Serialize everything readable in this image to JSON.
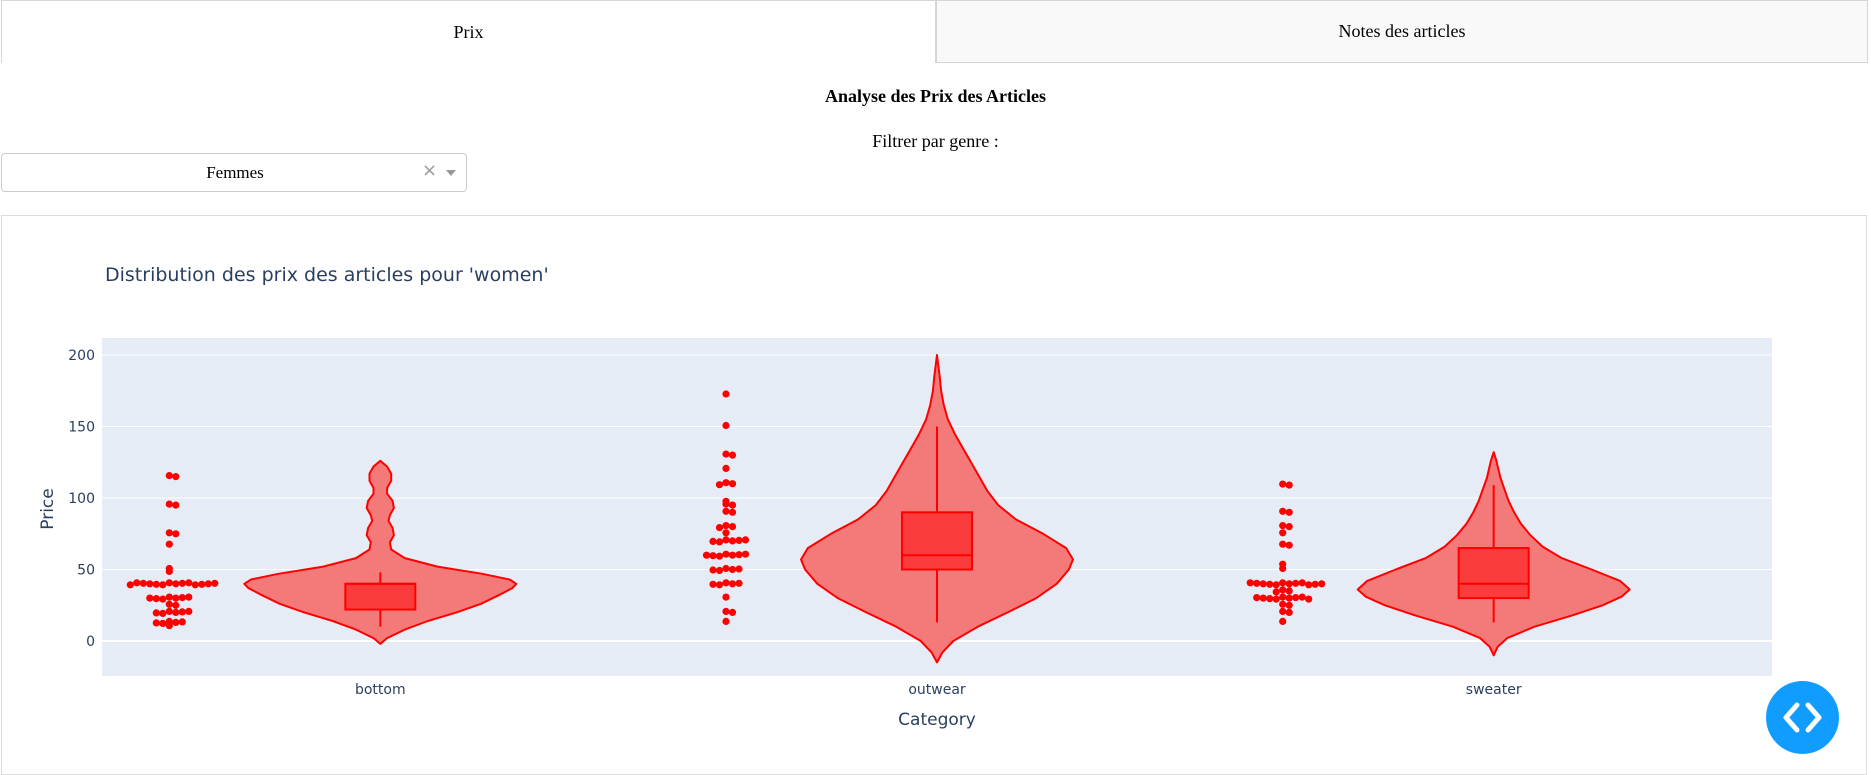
{
  "tabs": [
    {
      "label": "Prix",
      "active": true
    },
    {
      "label": "Notes des articles",
      "active": false
    }
  ],
  "page_title": "Analyse des Prix des Articles",
  "filter": {
    "label": "Filtrer par genre :",
    "value": "Femmes",
    "clear_symbol": "×"
  },
  "colors": {
    "accent": "#ff0000",
    "violin_fill": "#f47a7a",
    "plot_bg": "#e5ecf6",
    "text": "#2a3f5f",
    "fab": "#119dff"
  },
  "fab": {
    "icon": "code-icon"
  },
  "chart_data": {
    "type": "violin",
    "title": "Distribution des prix des articles pour 'women'",
    "xlabel": "Category",
    "ylabel": "Price",
    "ylim": [
      -28,
      210
    ],
    "yticks": [
      0,
      50,
      100,
      150,
      200
    ],
    "grid": true,
    "categories": [
      "bottom",
      "outwear",
      "sweater"
    ],
    "series": [
      {
        "category": "bottom",
        "points": [
          115,
          115,
          95,
          95,
          75,
          75,
          67,
          50,
          48,
          40,
          40,
          40,
          40,
          40,
          40,
          40,
          40,
          40,
          40,
          40,
          40,
          40,
          40,
          30,
          30,
          30,
          30,
          30,
          30,
          30,
          25,
          25,
          20,
          20,
          20,
          20,
          20,
          20,
          13,
          13,
          13,
          13,
          13,
          10
        ],
        "box": {
          "q1": 22,
          "median": 40,
          "q3": 40,
          "min": 10,
          "max": 48
        },
        "kde_range": [
          -2,
          126
        ],
        "kde_profile": [
          [
            -2,
            0
          ],
          [
            2,
            0.05
          ],
          [
            8,
            0.18
          ],
          [
            14,
            0.35
          ],
          [
            20,
            0.56
          ],
          [
            26,
            0.74
          ],
          [
            32,
            0.87
          ],
          [
            37,
            0.97
          ],
          [
            40,
            1.0
          ],
          [
            43,
            0.95
          ],
          [
            47,
            0.75
          ],
          [
            52,
            0.42
          ],
          [
            58,
            0.18
          ],
          [
            64,
            0.08
          ],
          [
            69,
            0.07
          ],
          [
            74,
            0.1
          ],
          [
            79,
            0.09
          ],
          [
            84,
            0.06
          ],
          [
            88,
            0.07
          ],
          [
            93,
            0.1
          ],
          [
            98,
            0.09
          ],
          [
            103,
            0.05
          ],
          [
            107,
            0.05
          ],
          [
            112,
            0.08
          ],
          [
            117,
            0.08
          ],
          [
            122,
            0.05
          ],
          [
            126,
            0
          ]
        ]
      },
      {
        "category": "outwear",
        "points": [
          172,
          150,
          130,
          130,
          120,
          110,
          110,
          110,
          97,
          95,
          95,
          90,
          90,
          80,
          80,
          80,
          75,
          70,
          70,
          70,
          70,
          70,
          70,
          60,
          60,
          60,
          60,
          60,
          60,
          60,
          50,
          50,
          50,
          50,
          50,
          40,
          40,
          40,
          40,
          40,
          30,
          20,
          20,
          13
        ],
        "box": {
          "q1": 50,
          "median": 60,
          "q3": 90,
          "min": 13,
          "max": 150
        },
        "kde_range": [
          -15,
          200
        ],
        "kde_profile": [
          [
            -15,
            0
          ],
          [
            -8,
            0.04
          ],
          [
            0,
            0.12
          ],
          [
            10,
            0.3
          ],
          [
            20,
            0.52
          ],
          [
            30,
            0.73
          ],
          [
            40,
            0.88
          ],
          [
            50,
            0.97
          ],
          [
            57,
            1.0
          ],
          [
            65,
            0.95
          ],
          [
            75,
            0.78
          ],
          [
            85,
            0.58
          ],
          [
            95,
            0.45
          ],
          [
            105,
            0.37
          ],
          [
            115,
            0.31
          ],
          [
            125,
            0.25
          ],
          [
            135,
            0.19
          ],
          [
            145,
            0.13
          ],
          [
            155,
            0.08
          ],
          [
            165,
            0.05
          ],
          [
            175,
            0.03
          ],
          [
            185,
            0.02
          ],
          [
            200,
            0
          ]
        ]
      },
      {
        "category": "sweater",
        "points": [
          109,
          109,
          90,
          90,
          80,
          80,
          75,
          67,
          67,
          53,
          50,
          40,
          40,
          40,
          40,
          40,
          40,
          40,
          40,
          40,
          40,
          40,
          40,
          35,
          35,
          35,
          30,
          30,
          30,
          30,
          30,
          30,
          30,
          30,
          30,
          25,
          25,
          20,
          20,
          13
        ],
        "box": {
          "q1": 30,
          "median": 40,
          "q3": 65,
          "min": 13,
          "max": 109
        },
        "kde_range": [
          -10,
          132
        ],
        "kde_profile": [
          [
            -10,
            0
          ],
          [
            -4,
            0.03
          ],
          [
            2,
            0.1
          ],
          [
            10,
            0.3
          ],
          [
            18,
            0.58
          ],
          [
            25,
            0.8
          ],
          [
            31,
            0.94
          ],
          [
            36,
            1.0
          ],
          [
            42,
            0.93
          ],
          [
            50,
            0.72
          ],
          [
            58,
            0.5
          ],
          [
            66,
            0.36
          ],
          [
            74,
            0.27
          ],
          [
            82,
            0.2
          ],
          [
            90,
            0.15
          ],
          [
            98,
            0.11
          ],
          [
            106,
            0.08
          ],
          [
            114,
            0.05
          ],
          [
            120,
            0.035
          ],
          [
            126,
            0.02
          ],
          [
            132,
            0
          ]
        ]
      }
    ]
  }
}
